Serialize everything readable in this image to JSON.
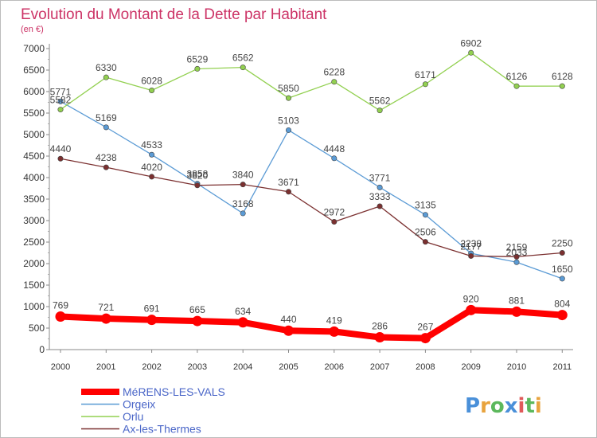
{
  "chart_data": {
    "type": "line",
    "title": "Evolution du Montant de la Dette par Habitant",
    "subtitle": "(en €)",
    "x": [
      "2000",
      "2001",
      "2002",
      "2003",
      "2004",
      "2005",
      "2006",
      "2007",
      "2008",
      "2009",
      "2010",
      "2011"
    ],
    "ylim": [
      0,
      7000
    ],
    "yticks": [
      0,
      500,
      1000,
      1500,
      2000,
      2500,
      3000,
      3500,
      4000,
      4500,
      5000,
      5500,
      6000,
      6500,
      7000
    ],
    "grid": false,
    "legend_position": "bottom-left",
    "series": [
      {
        "name": "MéRENS-LES-VALS",
        "color": "#ff0000",
        "values": [
          769,
          721,
          691,
          665,
          634,
          440,
          419,
          286,
          267,
          920,
          881,
          804
        ]
      },
      {
        "name": "Orgeix",
        "color": "#5b9bd5",
        "values": [
          5771,
          5169,
          4533,
          3858,
          3168,
          5103,
          4448,
          3771,
          3135,
          2238,
          2033,
          1650
        ]
      },
      {
        "name": "Orlu",
        "color": "#92d050",
        "values": [
          5582,
          6330,
          6028,
          6529,
          6562,
          5850,
          6228,
          5562,
          6171,
          6902,
          6126,
          6128
        ]
      },
      {
        "name": "Ax-les-Thermes",
        "color": "#7b3030",
        "values": [
          4440,
          4238,
          4020,
          3820,
          3840,
          3671,
          2972,
          3333,
          2506,
          2177,
          2159,
          2250
        ]
      }
    ]
  },
  "logo": {
    "text": "Proxiti",
    "letters": [
      "P",
      "r",
      "o",
      "x",
      "i",
      "t",
      "i"
    ],
    "colors": [
      "#4a90d9",
      "#e8a33d",
      "#5cb85c",
      "#4a90d9",
      "#e05a5a",
      "#5cb85c",
      "#e8a33d"
    ]
  }
}
